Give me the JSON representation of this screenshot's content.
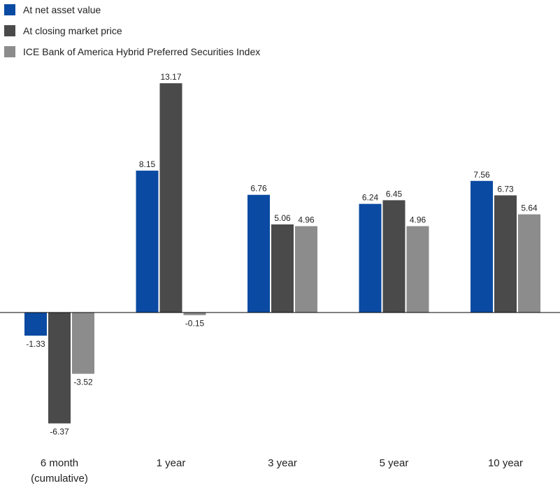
{
  "chart_data": {
    "type": "bar",
    "categories": [
      [
        "6 month",
        "(cumulative)"
      ],
      [
        "1 year"
      ],
      [
        "3 year"
      ],
      [
        "5 year"
      ],
      [
        "10 year"
      ]
    ],
    "series": [
      {
        "name": "At net asset value",
        "color": "#0b4aa2",
        "values": [
          -1.33,
          8.15,
          6.76,
          6.24,
          7.56
        ]
      },
      {
        "name": "At closing market price",
        "color": "#4a4a4a",
        "values": [
          -6.37,
          13.17,
          5.06,
          6.45,
          6.73
        ]
      },
      {
        "name": "ICE Bank of America Hybrid Preferred Securities Index",
        "color": "#8c8c8c",
        "values": [
          -3.52,
          -0.15,
          4.96,
          4.96,
          5.64
        ]
      }
    ],
    "value_labels": [
      [
        "-1.33",
        "8.15",
        "6.76",
        "6.24",
        "7.56"
      ],
      [
        "-6.37",
        "13.17",
        "5.06",
        "6.45",
        "6.73"
      ],
      [
        "-3.52",
        "-0.15",
        "4.96",
        "4.96",
        "5.64"
      ]
    ],
    "legend_position": "top-left",
    "grid": false,
    "ylim": [
      -7,
      14
    ]
  }
}
